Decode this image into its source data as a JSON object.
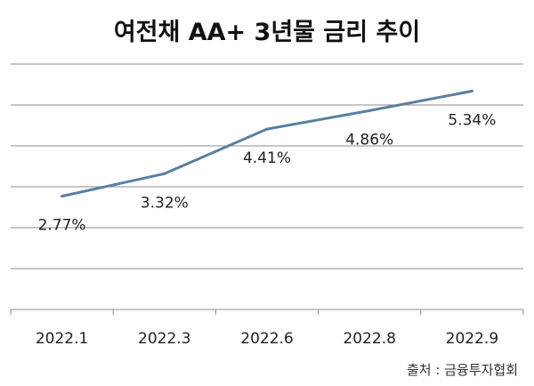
{
  "chart_data": {
    "type": "line",
    "title": "여전채 AA+ 3년물 금리 추이",
    "categories": [
      "2022.1",
      "2022.3",
      "2022.6",
      "2022.8",
      "2022.9"
    ],
    "series": [
      {
        "values": [
          2.77,
          3.32,
          4.41,
          4.86,
          5.34
        ]
      }
    ],
    "data_labels": [
      "2.77%",
      "3.32%",
      "4.41%",
      "4.86%",
      "5.34%"
    ],
    "xlabel": "",
    "ylabel": "",
    "ylim": [
      0,
      6
    ],
    "grid": true,
    "legend": "none",
    "line_color": "#5a7fa3",
    "grid_color": "#8c8c8c"
  },
  "source": "출처 : 금융투자협회"
}
